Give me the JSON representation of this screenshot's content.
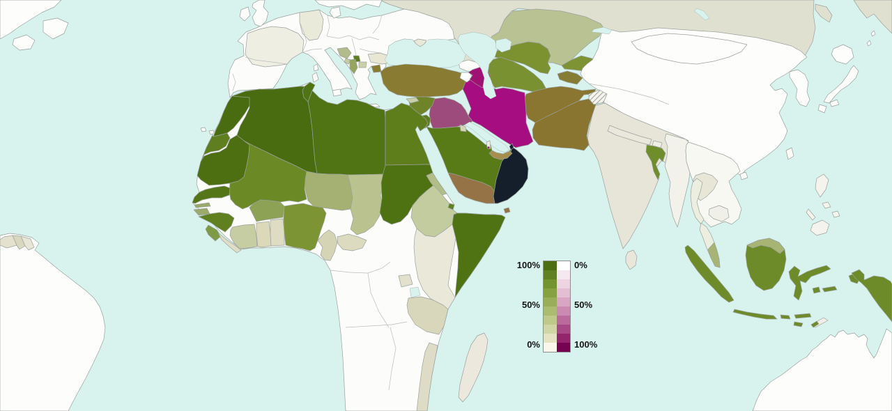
{
  "legend": {
    "left_labels": [
      "100%",
      "50%",
      "0%"
    ],
    "right_labels": [
      "0%",
      "50%",
      "100%"
    ],
    "green_scale": [
      "#4d6e12",
      "#608021",
      "#739230",
      "#86a142",
      "#98ae58",
      "#abbb70",
      "#bec98a",
      "#d1d6a6",
      "#e4e3c4",
      "#f9f6ec"
    ],
    "purple_scale": [
      "#ffffff",
      "#f6e8f0",
      "#eed4e3",
      "#e4bed5",
      "#d8a5c5",
      "#cb8ab1",
      "#ba6a9c",
      "#a84886",
      "#94246c",
      "#760351"
    ]
  },
  "map": {
    "ocean_color": "#d8f2ee",
    "border_color": "#9aa19c",
    "land_color": "#fcfcfb",
    "countries": {
      "water": {
        "name": "Ocean / lakes",
        "color": "#d8f2ee"
      },
      "north_america": {
        "name": "North America",
        "color": "#fdfdfc"
      },
      "south_america": {
        "name": "South America",
        "color": "#fdfdfc"
      },
      "guyana": {
        "name": "Guyana",
        "color": "#e4e2cf"
      },
      "suriname": {
        "name": "Suriname",
        "color": "#d9d7bd"
      },
      "french_guiana": {
        "name": "French Guiana",
        "color": "#e7e5d5"
      },
      "europe": {
        "name": "Europe (non-Muslim)",
        "color": "#fcfcfb"
      },
      "france": {
        "name": "France",
        "color": "#efeee3"
      },
      "germany": {
        "name": "Germany",
        "color": "#eaeadb"
      },
      "bulgaria": {
        "name": "Bulgaria",
        "color": "#e8e7d4"
      },
      "bosnia": {
        "name": "Bosnia and Herzegovina",
        "color": "#b2bc8b"
      },
      "albania": {
        "name": "Albania",
        "color": "#96a65f"
      },
      "kosovo": {
        "name": "Kosovo",
        "color": "#5c7c1e"
      },
      "macedonia": {
        "name": "North Macedonia",
        "color": "#ccd0a8"
      },
      "montenegro": {
        "name": "Montenegro",
        "color": "#c6cca4"
      },
      "crimea": {
        "name": "Crimea",
        "color": "#e8e8da"
      },
      "cyprus": {
        "name": "Cyprus",
        "color": "#c9cfa6"
      },
      "russia": {
        "name": "Russia",
        "color": "#e0e0d1"
      },
      "kazakhstan": {
        "name": "Kazakhstan",
        "color": "#b9c293"
      },
      "uzbekistan": {
        "name": "Uzbekistan",
        "color": "#7c9230"
      },
      "turkmenistan": {
        "name": "Turkmenistan",
        "color": "#7a9132"
      },
      "kyrgyzstan": {
        "name": "Kyrgyzstan",
        "color": "#7e9334"
      },
      "tajikistan": {
        "name": "Tajikistan",
        "color": "#867c34"
      },
      "china": {
        "name": "China",
        "color": "#fdfdfc"
      },
      "mongolia": {
        "name": "Mongolia",
        "color": "#fdfdfc"
      },
      "korea": {
        "name": "Korea",
        "color": "#fdfdfc"
      },
      "japan": {
        "name": "Japan",
        "color": "#fdfdfc"
      },
      "taiwan": {
        "name": "Taiwan",
        "color": "#fbfaf6"
      },
      "india": {
        "name": "India",
        "color": "#e7e5d7"
      },
      "nepal": {
        "name": "Nepal",
        "color": "#eae8dc"
      },
      "bhutan": {
        "name": "Bhutan",
        "color": "#f0efe6"
      },
      "bangladesh": {
        "name": "Bangladesh",
        "color": "#6f8d2b"
      },
      "sri_lanka": {
        "name": "Sri Lanka",
        "color": "#e9e7da"
      },
      "myanmar": {
        "name": "Myanmar",
        "color": "#f3f2ea"
      },
      "indochina": {
        "name": "Vietnam / Indochina",
        "color": "#f8f8f3"
      },
      "laos": {
        "name": "Laos",
        "color": "#e8e6d6"
      },
      "thailand": {
        "name": "Thailand",
        "color": "#eceee0"
      },
      "cambodia": {
        "name": "Cambodia",
        "color": "#f0efe8"
      },
      "malaysia": {
        "name": "Malaysia",
        "color": "#a8b474"
      },
      "indonesia": {
        "name": "Indonesia",
        "color": "#6e8b29"
      },
      "philippines": {
        "name": "Philippines",
        "color": "#f4f3ec"
      },
      "timor": {
        "name": "Timor-Leste",
        "color": "#f0eee6"
      },
      "australia": {
        "name": "Australia",
        "color": "#fdfdfc"
      },
      "afghanistan": {
        "name": "Afghanistan",
        "color": "#8b7631"
      },
      "pakistan": {
        "name": "Pakistan",
        "color": "#897430"
      },
      "kashmir": {
        "name": "Kashmir (disputed, hatched)",
        "color": "hatch"
      },
      "iran": {
        "name": "Iran",
        "color": "#a60d80"
      },
      "turkey": {
        "name": "Turkey",
        "color": "#8a7b33"
      },
      "syria": {
        "name": "Syria",
        "color": "#6f8428"
      },
      "iraq": {
        "name": "Iraq",
        "color": "#9d4a7c"
      },
      "jordan": {
        "name": "Jordan",
        "color": "#5c7d1d"
      },
      "israel": {
        "name": "Israel",
        "color": "#eceadd"
      },
      "lebanon": {
        "name": "Lebanon",
        "color": "#b48aa5"
      },
      "georgia": {
        "name": "Georgia",
        "color": "#fcfcfb"
      },
      "armenia": {
        "name": "Armenia",
        "color": "#fcfcfb"
      },
      "azerbaijan": {
        "name": "Azerbaijan",
        "color": "#9f1274"
      },
      "saudi_arabia": {
        "name": "Saudi Arabia",
        "color": "#587a17"
      },
      "yemen": {
        "name": "Yemen",
        "color": "#967347"
      },
      "oman": {
        "name": "Oman",
        "color": "#141f2b"
      },
      "uae": {
        "name": "United Arab Emirates",
        "color": "#a78e4e"
      },
      "qatar": {
        "name": "Qatar",
        "color": "#efede0"
      },
      "kuwait": {
        "name": "Kuwait",
        "color": "#d6d5b8"
      },
      "bahrain": {
        "name": "Bahrain",
        "color": "#a31277"
      },
      "socotra": {
        "name": "Socotra",
        "color": "#967347"
      },
      "africa_interior": {
        "name": "Central & Southern Africa",
        "color": "#fcfcfb"
      },
      "morocco": {
        "name": "Morocco",
        "color": "#4a6c10"
      },
      "western_sahara": {
        "name": "Western Sahara",
        "color": "#5e7e20"
      },
      "algeria": {
        "name": "Algeria",
        "color": "#4a6c10"
      },
      "tunisia": {
        "name": "Tunisia",
        "color": "#507314"
      },
      "libya": {
        "name": "Libya",
        "color": "#507413"
      },
      "egypt": {
        "name": "Egypt",
        "color": "#5e7e1b"
      },
      "mauritania": {
        "name": "Mauritania",
        "color": "#4d6f12"
      },
      "mali": {
        "name": "Mali",
        "color": "#6b8a26"
      },
      "niger": {
        "name": "Niger",
        "color": "#a5b073"
      },
      "chad": {
        "name": "Chad",
        "color": "#bac28f"
      },
      "sudan": {
        "name": "Sudan",
        "color": "#4e7211"
      },
      "senegal": {
        "name": "Senegal",
        "color": "#547619"
      },
      "gambia": {
        "name": "Gambia",
        "color": "#9aaa6a"
      },
      "guinea_bissau": {
        "name": "Guinea-Bissau",
        "color": "#9cab6d"
      },
      "guinea": {
        "name": "Guinea",
        "color": "#60801f"
      },
      "sierra_leone": {
        "name": "Sierra Leone",
        "color": "#7f9a45"
      },
      "liberia": {
        "name": "Liberia",
        "color": "#e0ddc6"
      },
      "ivory_coast": {
        "name": "Côte d'Ivoire",
        "color": "#c6cda2"
      },
      "ghana": {
        "name": "Ghana",
        "color": "#dbd9ba"
      },
      "togo_benin": {
        "name": "Togo / Benin",
        "color": "#dedcc2"
      },
      "burkina_faso": {
        "name": "Burkina Faso",
        "color": "#8ea255"
      },
      "nigeria": {
        "name": "Nigeria",
        "color": "#7d9434"
      },
      "cameroon": {
        "name": "Cameroon",
        "color": "#d5d4b5"
      },
      "central_african_republic": {
        "name": "Central African Republic",
        "color": "#dcdabf"
      },
      "eritrea": {
        "name": "Eritrea",
        "color": "#b2bd88"
      },
      "djibouti": {
        "name": "Djibouti",
        "color": "#5f8021"
      },
      "ethiopia": {
        "name": "Ethiopia",
        "color": "#c3cc9e"
      },
      "somalia": {
        "name": "Somalia",
        "color": "#4f7213"
      },
      "kenya": {
        "name": "Kenya",
        "color": "#eae8d9"
      },
      "uganda": {
        "name": "Uganda",
        "color": "#e3e1cd"
      },
      "tanzania": {
        "name": "Tanzania",
        "color": "#d8d7bc"
      },
      "mozambique": {
        "name": "Mozambique",
        "color": "#dedcc6"
      },
      "madagascar": {
        "name": "Madagascar",
        "color": "#ece8dd"
      }
    }
  }
}
